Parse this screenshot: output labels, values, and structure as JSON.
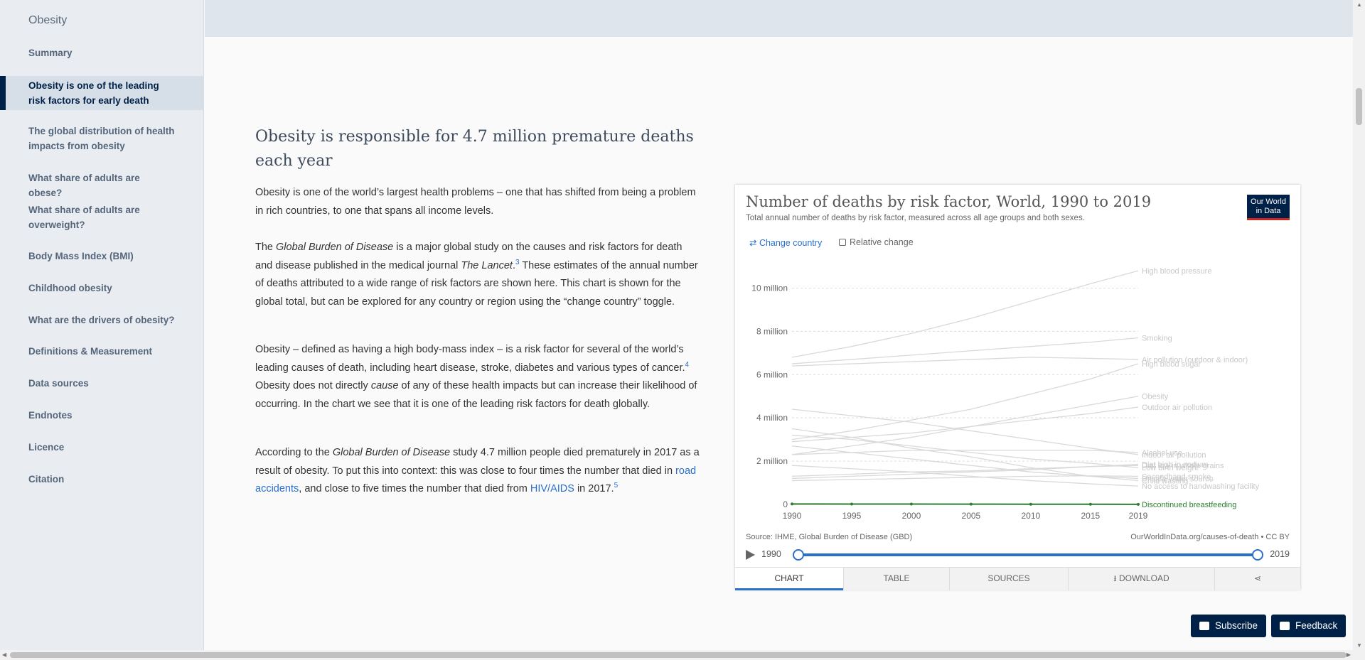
{
  "sidebar": {
    "title": "Obesity",
    "items": [
      {
        "label": "Summary"
      },
      {
        "label": "Obesity is one of the leading risk factors for early death"
      },
      {
        "label": "The global distribution of health impacts from obesity"
      },
      {
        "label": "What share of adults are obese?"
      },
      {
        "label": "What share of adults are overweight?"
      },
      {
        "label": "Body Mass Index (BMI)"
      },
      {
        "label": "Childhood obesity"
      },
      {
        "label": "What are the drivers of obesity?"
      },
      {
        "label": "Definitions & Measurement"
      },
      {
        "label": "Data sources"
      },
      {
        "label": "Endnotes"
      },
      {
        "label": "Licence"
      },
      {
        "label": "Citation"
      }
    ]
  },
  "article": {
    "heading": "Obesity is responsible for 4.7 million premature deaths each year",
    "p1": "Obesity is one of the world’s largest health problems – one that has shifted from being a problem in rich countries, to one that spans all income levels.",
    "p2": {
      "a": "The ",
      "b": "Global Burden of Disease",
      "c": " is a major global study on the causes and risk factors for death and disease published in the medical journal ",
      "d": "The Lancet",
      "e": ".",
      "sup": "3",
      "f": " These estimates of the annual number of deaths attributed to a wide range of risk factors are shown here. This chart is shown for the global total, but can be explored for any country or region using the “change country” toggle."
    },
    "p3": {
      "a": "Obesity – defined as having a high body-mass index – is a risk factor for several of the world’s leading causes of death, including heart disease, stroke, diabetes and various types of cancer.",
      "sup": "4",
      "b": " Obesity does not directly ",
      "c": "cause",
      "d": " of any of these health impacts but can increase their likelihood of occurring. In the chart we see that it is one of the leading risk factors for death globally."
    },
    "p4": {
      "a": "According to the ",
      "b": "Global Burden of Disease",
      "c": " study 4.7 million people died prematurely in 2017 as a result of obesity. To put this into context: this was close to four times the number that died in ",
      "link1": "road accidents",
      "d": ", and close to five times the number that died from ",
      "link2": "HIV/AIDS",
      "e": " in 2017.",
      "sup": "5"
    }
  },
  "chart_card": {
    "title": "Number of deaths by risk factor, World, 1990 to 2019",
    "subtitle": "Total annual number of deaths by risk factor, measured across all age groups and both sexes.",
    "logo_line1": "Our World",
    "logo_line2": "in Data",
    "change_country": "⇄ Change country",
    "relative_change": "Relative change",
    "source": "Source: IHME, Global Burden of Disease (GBD)",
    "url": "OurWorldInData.org/causes-of-death • CC BY",
    "timeline_start": "1990",
    "timeline_end": "2019",
    "tabs": [
      "CHART",
      "TABLE",
      "SOURCES",
      "DOWNLOAD",
      ""
    ],
    "highlight_color": "#2e7d32",
    "muted_color": "#d9d9d9",
    "accent_color": "#2a6fca"
  },
  "chart_data": {
    "type": "line",
    "title": "Number of deaths by risk factor, World, 1990 to 2019",
    "xlabel": "",
    "ylabel": "",
    "x": [
      1990,
      1995,
      2000,
      2005,
      2010,
      2015,
      2019
    ],
    "x_ticks": [
      "1990",
      "1995",
      "2000",
      "2005",
      "2010",
      "2015",
      "2019"
    ],
    "ylim": [
      0,
      11000000
    ],
    "y_ticks": [
      {
        "value": 0,
        "label": "0"
      },
      {
        "value": 2000000,
        "label": "2 million"
      },
      {
        "value": 4000000,
        "label": "4 million"
      },
      {
        "value": 6000000,
        "label": "6 million"
      },
      {
        "value": 8000000,
        "label": "8 million"
      },
      {
        "value": 10000000,
        "label": "10 million"
      }
    ],
    "grid": true,
    "highlighted": "Discontinued breastfeeding",
    "series": [
      {
        "name": "High blood pressure",
        "values": [
          6800000,
          7300000,
          7900000,
          8600000,
          9400000,
          10200000,
          10800000
        ]
      },
      {
        "name": "Smoking",
        "values": [
          6500000,
          6700000,
          6900000,
          7100000,
          7300000,
          7500000,
          7700000
        ]
      },
      {
        "name": "Air pollution (outdoor & indoor)",
        "values": [
          6400000,
          6500000,
          6600000,
          6700000,
          6800000,
          6750000,
          6700000
        ]
      },
      {
        "name": "High blood sugar",
        "values": [
          3000000,
          3400000,
          3900000,
          4400000,
          5100000,
          5800000,
          6500000
        ]
      },
      {
        "name": "Obesity",
        "values": [
          2300000,
          2700000,
          3100000,
          3600000,
          4100000,
          4600000,
          5000000
        ]
      },
      {
        "name": "Outdoor air pollution",
        "values": [
          2900000,
          3100000,
          3300000,
          3600000,
          3900000,
          4200000,
          4500000
        ]
      },
      {
        "name": "Alcohol use",
        "values": [
          2300000,
          2400000,
          2500000,
          2500000,
          2500000,
          2500000,
          2400000
        ]
      },
      {
        "name": "Indoor air pollution",
        "values": [
          4400000,
          4100000,
          3800000,
          3400000,
          3000000,
          2600000,
          2300000
        ]
      },
      {
        "name": "Diet high in sodium",
        "values": [
          1200000,
          1300000,
          1400000,
          1500000,
          1600000,
          1750000,
          1850000
        ]
      },
      {
        "name": "Diet low in whole grains",
        "values": [
          1300000,
          1400000,
          1500000,
          1550000,
          1650000,
          1750000,
          1800000
        ]
      },
      {
        "name": "Low birth weight",
        "values": [
          3200000,
          3000000,
          2700000,
          2400000,
          2100000,
          1900000,
          1700000
        ]
      },
      {
        "name": "Secondhand smoke",
        "values": [
          1100000,
          1150000,
          1200000,
          1250000,
          1300000,
          1320000,
          1300000
        ]
      },
      {
        "name": "Child wasting",
        "values": [
          3500000,
          3100000,
          2600000,
          2200000,
          1700000,
          1300000,
          1100000
        ]
      },
      {
        "name": "Unsafe water source",
        "values": [
          2700000,
          2400000,
          2100000,
          1800000,
          1500000,
          1300000,
          1200000
        ]
      },
      {
        "name": "No access to handwashing facility",
        "values": [
          1800000,
          1650000,
          1500000,
          1300000,
          1100000,
          950000,
          850000
        ]
      },
      {
        "name": "Discontinued breastfeeding",
        "values": [
          20000,
          18000,
          15000,
          12000,
          10000,
          8000,
          6000
        ]
      }
    ]
  },
  "floating": {
    "subscribe": "Subscribe",
    "feedback": "Feedback"
  }
}
